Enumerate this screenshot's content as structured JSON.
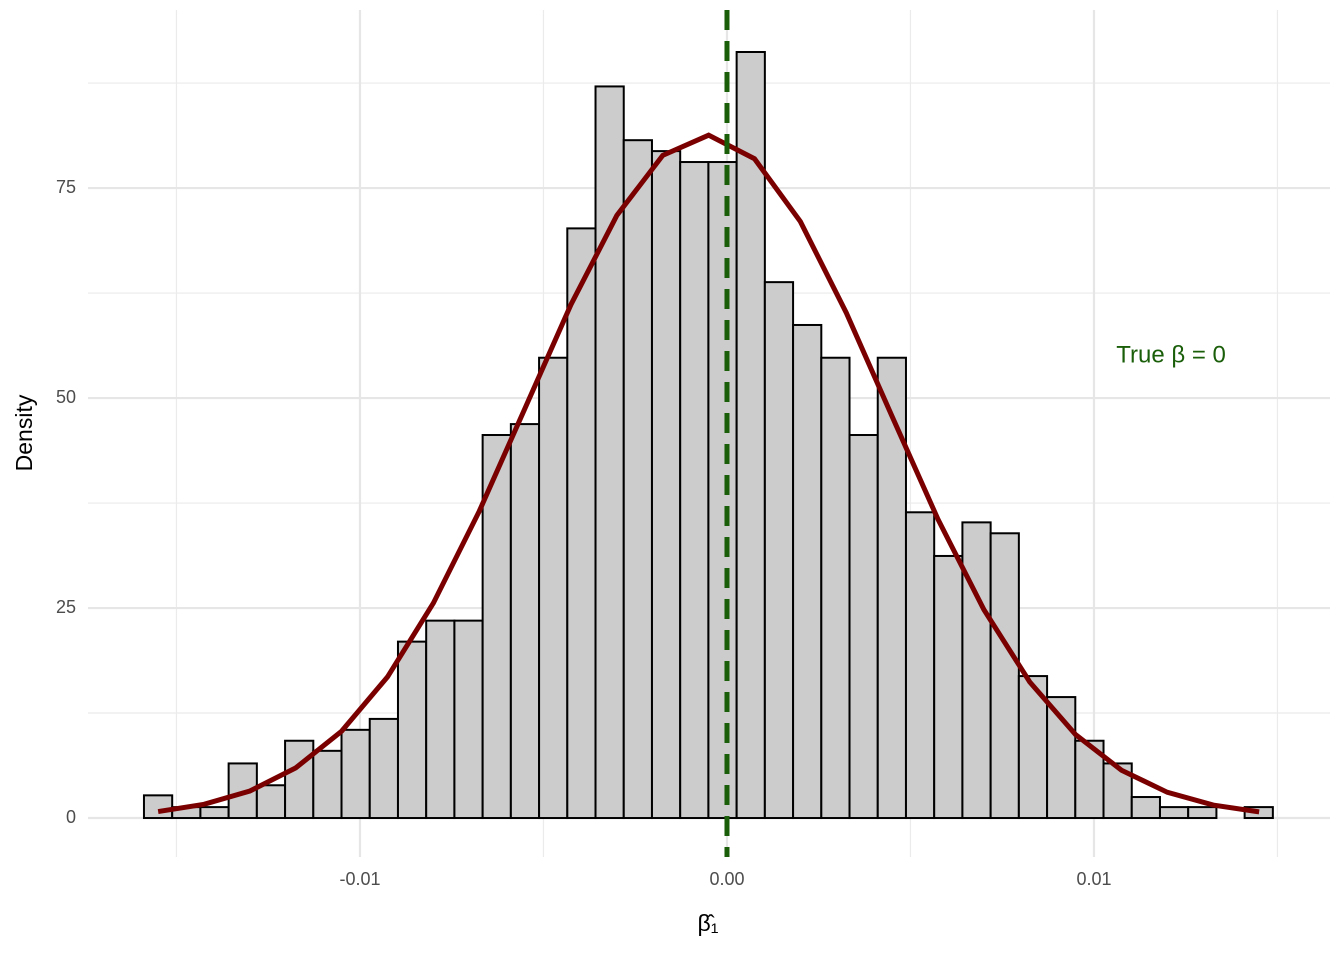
{
  "chart_data": {
    "type": "histogram",
    "x_label": "β̂₁",
    "y_label": "Density",
    "bins": [
      -0.015886,
      -0.015117,
      -0.014348,
      -0.013579,
      -0.01281,
      -0.012041,
      -0.011272,
      -0.010503,
      -0.009734,
      -0.008965,
      -0.008196,
      -0.007427,
      -0.006658,
      -0.005889,
      -0.00512,
      -0.004351,
      -0.003582,
      -0.002813,
      -0.002044,
      -0.001275,
      -0.000506,
      0.000263,
      0.001032,
      0.001801,
      0.00257,
      0.003339,
      0.004108,
      0.004877,
      0.005646,
      0.006415,
      0.007184,
      0.007953,
      0.008722,
      0.009491,
      0.01026,
      0.011029,
      0.011798,
      0.012567,
      0.013336,
      0.014105,
      0.014874
    ],
    "values": [
      2.7,
      1.3,
      1.3,
      6.5,
      3.9,
      9.2,
      8.0,
      10.5,
      11.8,
      21.0,
      23.5,
      23.5,
      45.6,
      46.9,
      54.8,
      70.2,
      87.1,
      80.7,
      79.4,
      78.1,
      78.1,
      91.2,
      63.8,
      58.7,
      54.8,
      45.6,
      54.8,
      36.4,
      31.2,
      35.2,
      33.9,
      16.9,
      14.4,
      9.2,
      6.5,
      2.5,
      1.3,
      1.3,
      0,
      1.3
    ],
    "color": "#cccccc",
    "edge_color": "#000000",
    "density_curve": {
      "color": "#7a0000",
      "x": [
        -0.0155,
        -0.01425,
        -0.013,
        -0.01175,
        -0.0105,
        -0.00925,
        -0.008,
        -0.00675,
        -0.0055,
        -0.00425,
        -0.003,
        -0.00175,
        -0.0005,
        0.00075,
        0.002,
        0.00325,
        0.0045,
        0.00575,
        0.007,
        0.00825,
        0.0095,
        0.01075,
        0.012,
        0.01325,
        0.0145
      ],
      "y": [
        0.77,
        1.63,
        3.22,
        5.97,
        10.34,
        16.8,
        25.59,
        36.53,
        48.82,
        61.14,
        71.75,
        78.89,
        81.3,
        78.49,
        71.01,
        60.16,
        47.8,
        35.56,
        24.81,
        16.2,
        9.93,
        5.69,
        3.06,
        1.54,
        0.73
      ]
    },
    "vline": {
      "x": 0,
      "color": "#1a5e0a"
    },
    "annotation": {
      "text": "True β = 0",
      "x": 0.0121,
      "y": 55,
      "color": "#1a5e0a"
    },
    "xlim": [
      -0.017411,
      0.016431
    ],
    "ylim": [
      -4.64,
      96.2
    ],
    "xticks": [
      -0.01,
      {
        "value": 0,
        "label": "0.00"
      },
      0.01
    ],
    "yticks": [
      0,
      25,
      50,
      75
    ],
    "x_minor_ticks": [
      -0.015,
      -0.005,
      0.005,
      0.015
    ],
    "y_minor_ticks": [
      12.5,
      37.5,
      62.5,
      87.5
    ],
    "grid": true
  }
}
